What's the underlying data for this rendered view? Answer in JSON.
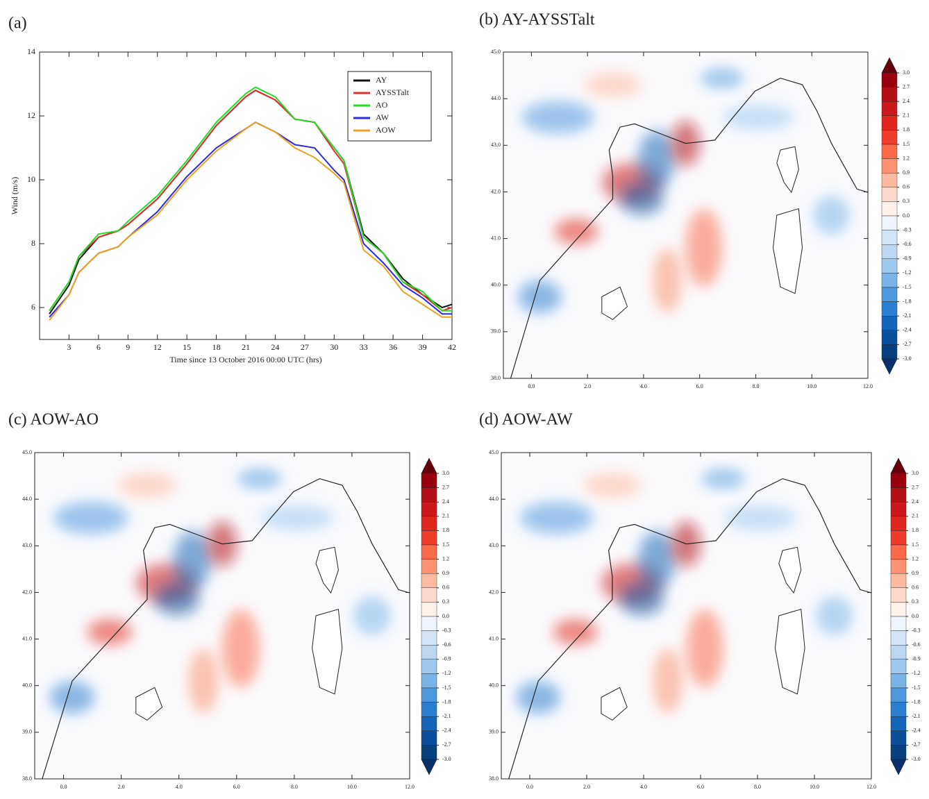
{
  "chart_data": [
    {
      "type": "line",
      "title": "(a)",
      "xlabel": "Time since 13 October 2016 00:00 UTC (hrs)",
      "ylabel": "Wind (m/s)",
      "x": [
        1,
        3,
        4,
        6,
        8,
        9,
        12,
        15,
        18,
        21,
        22,
        24,
        26,
        28,
        30,
        31,
        33,
        35,
        37,
        39,
        41,
        42
      ],
      "xlim": [
        0,
        42
      ],
      "ylim": [
        5,
        14
      ],
      "xticks": [
        3,
        6,
        9,
        12,
        15,
        18,
        21,
        24,
        27,
        30,
        33,
        36,
        39,
        42
      ],
      "yticks": [
        6,
        8,
        10,
        12,
        14
      ],
      "legend": "upper right",
      "series": [
        {
          "name": "AY",
          "color": "#111111",
          "values": [
            5.8,
            6.7,
            7.5,
            8.2,
            8.4,
            8.6,
            9.4,
            10.5,
            11.7,
            12.6,
            12.8,
            12.5,
            11.9,
            11.8,
            11.0,
            10.6,
            8.3,
            7.7,
            6.9,
            6.4,
            6.0,
            6.1
          ]
        },
        {
          "name": "AYSSTalt",
          "color": "#e03030",
          "values": [
            5.9,
            6.8,
            7.6,
            8.2,
            8.4,
            8.6,
            9.4,
            10.5,
            11.7,
            12.6,
            12.8,
            12.5,
            11.9,
            11.8,
            10.9,
            10.5,
            8.2,
            7.7,
            6.8,
            6.4,
            5.9,
            6.0
          ]
        },
        {
          "name": "AO",
          "color": "#22dd22",
          "values": [
            5.9,
            6.8,
            7.6,
            8.3,
            8.4,
            8.7,
            9.5,
            10.6,
            11.8,
            12.7,
            12.9,
            12.6,
            11.9,
            11.8,
            11.0,
            10.6,
            8.2,
            7.7,
            6.8,
            6.5,
            5.9,
            5.9
          ]
        },
        {
          "name": "AW",
          "color": "#2a2ae0",
          "values": [
            5.7,
            6.4,
            7.1,
            7.7,
            7.9,
            8.2,
            9.0,
            10.1,
            11.0,
            11.6,
            11.8,
            11.5,
            11.1,
            11.0,
            10.3,
            10.0,
            8.0,
            7.4,
            6.7,
            6.3,
            5.8,
            5.8
          ]
        },
        {
          "name": "AOW",
          "color": "#f0a020",
          "values": [
            5.6,
            6.4,
            7.1,
            7.7,
            7.9,
            8.2,
            8.9,
            10.0,
            10.9,
            11.6,
            11.8,
            11.5,
            11.0,
            10.7,
            10.2,
            9.9,
            7.8,
            7.3,
            6.5,
            6.1,
            5.7,
            5.7
          ]
        }
      ]
    },
    {
      "type": "map",
      "title": "(b) AY-AYSSTalt",
      "xlim": [
        -1,
        12
      ],
      "ylim": [
        38,
        45
      ],
      "xticks": [
        {
          "value": 0,
          "label": "0.0"
        },
        {
          "value": 2,
          "label": "2.0"
        },
        {
          "value": 4,
          "label": "4.0"
        },
        {
          "value": 6,
          "label": "6.0"
        },
        {
          "value": 8,
          "label": "8.0"
        },
        {
          "value": 10,
          "label": "10.0"
        },
        {
          "value": 12,
          "label": "12.0"
        }
      ],
      "yticks": [
        {
          "value": 38,
          "label": "38.0"
        },
        {
          "value": 39,
          "label": "39.0"
        },
        {
          "value": 40,
          "label": "40.0"
        },
        {
          "value": 41,
          "label": "41.0"
        },
        {
          "value": 42,
          "label": "42.0"
        },
        {
          "value": 43,
          "label": "43.0"
        },
        {
          "value": 44,
          "label": "44.0"
        },
        {
          "value": 45,
          "label": "45.0"
        }
      ],
      "colorbar": {
        "levels": [
          {
            "value": 3,
            "label": "3.0"
          },
          2.7,
          2.4,
          2.1,
          1.8,
          1.5,
          1.2,
          0.9,
          0.6,
          0.3,
          {
            "value": 0,
            "label": "0.0"
          },
          -0.3,
          -0.6,
          -0.9,
          -1.2,
          -1.5,
          -1.8,
          -2.1,
          -2.4,
          -2.7,
          {
            "value": -3,
            "label": "-3.0"
          }
        ],
        "colors": [
          "#67000d",
          "#99000d",
          "#b30f15",
          "#cb181d",
          "#e0261f",
          "#ef3b2c",
          "#fb6a4a",
          "#fc9272",
          "#fcbba1",
          "#fdd8cc",
          "#fff0ea",
          "#eef4fc",
          "#d4e4f7",
          "#bcd6f2",
          "#9ec8ee",
          "#7ab3e6",
          "#4d97dc",
          "#2c7fd0",
          "#1566b8",
          "#0b4f9c",
          "#08407e",
          "#08306b"
        ]
      }
    },
    {
      "type": "map",
      "title": "(c) AOW-AO",
      "xlim": [
        -1,
        12
      ],
      "ylim": [
        38,
        45
      ],
      "xticks": [
        {
          "value": 0,
          "label": "0.0"
        },
        {
          "value": 2,
          "label": "2.0"
        },
        {
          "value": 4,
          "label": "4.0"
        },
        {
          "value": 6,
          "label": "6.0"
        },
        {
          "value": 8,
          "label": "8.0"
        },
        {
          "value": 10,
          "label": "10.0"
        },
        {
          "value": 12,
          "label": "12.0"
        }
      ],
      "yticks": [
        {
          "value": 38,
          "label": "38.0"
        },
        {
          "value": 39,
          "label": "39.0"
        },
        {
          "value": 40,
          "label": "40.0"
        },
        {
          "value": 41,
          "label": "41.0"
        },
        {
          "value": 42,
          "label": "42.0"
        },
        {
          "value": 43,
          "label": "43.0"
        },
        {
          "value": 44,
          "label": "44.0"
        },
        {
          "value": 45,
          "label": "45.0"
        }
      ],
      "colorbar": {
        "levels": [
          {
            "value": 3,
            "label": "3.0"
          },
          2.7,
          2.4,
          2.1,
          1.8,
          1.5,
          1.2,
          0.9,
          0.6,
          0.3,
          {
            "value": 0,
            "label": "0.0"
          },
          -0.3,
          -0.6,
          -0.9,
          -1.2,
          -1.5,
          -1.8,
          -2.1,
          -2.4,
          -2.7,
          {
            "value": -3,
            "label": "-3.0"
          }
        ],
        "colors": [
          "#67000d",
          "#99000d",
          "#b30f15",
          "#cb181d",
          "#e0261f",
          "#ef3b2c",
          "#fb6a4a",
          "#fc9272",
          "#fcbba1",
          "#fdd8cc",
          "#fff0ea",
          "#eef4fc",
          "#d4e4f7",
          "#bcd6f2",
          "#9ec8ee",
          "#7ab3e6",
          "#4d97dc",
          "#2c7fd0",
          "#1566b8",
          "#0b4f9c",
          "#08407e",
          "#08306b"
        ]
      }
    },
    {
      "type": "map",
      "title": "(d) AOW-AW",
      "xlim": [
        -1,
        12
      ],
      "ylim": [
        38,
        45
      ],
      "xticks": [
        {
          "value": 0,
          "label": "0.0"
        },
        {
          "value": 2,
          "label": "2.0"
        },
        {
          "value": 4,
          "label": "4.0"
        },
        {
          "value": 6,
          "label": "6.0"
        },
        {
          "value": 8,
          "label": "8.0"
        },
        {
          "value": 10,
          "label": "10.0"
        },
        {
          "value": 12,
          "label": "12.0"
        }
      ],
      "yticks": [
        {
          "value": 38,
          "label": "38.0"
        },
        {
          "value": 39,
          "label": "39.0"
        },
        {
          "value": 40,
          "label": "40.0"
        },
        {
          "value": 41,
          "label": "41.0"
        },
        {
          "value": 42,
          "label": "42.0"
        },
        {
          "value": 43,
          "label": "43.0"
        },
        {
          "value": 44,
          "label": "44.0"
        },
        {
          "value": 45,
          "label": "45.0"
        }
      ],
      "colorbar": {
        "levels": [
          {
            "value": 3,
            "label": "3.0"
          },
          2.7,
          2.4,
          2.1,
          1.8,
          1.5,
          1.2,
          0.9,
          0.6,
          0.3,
          {
            "value": 0,
            "label": "0.0"
          },
          -0.3,
          -0.6,
          -0.9,
          -1.2,
          -1.5,
          -1.8,
          -2.1,
          -2.4,
          -2.7,
          {
            "value": -3,
            "label": "-3.0"
          }
        ],
        "colors": [
          "#67000d",
          "#99000d",
          "#b30f15",
          "#cb181d",
          "#e0261f",
          "#ef3b2c",
          "#fb6a4a",
          "#fc9272",
          "#fcbba1",
          "#fdd8cc",
          "#fff0ea",
          "#eef4fc",
          "#d4e4f7",
          "#bcd6f2",
          "#9ec8ee",
          "#7ab3e6",
          "#4d97dc",
          "#2c7fd0",
          "#1566b8",
          "#0b4f9c",
          "#08407e",
          "#08306b"
        ]
      }
    }
  ]
}
